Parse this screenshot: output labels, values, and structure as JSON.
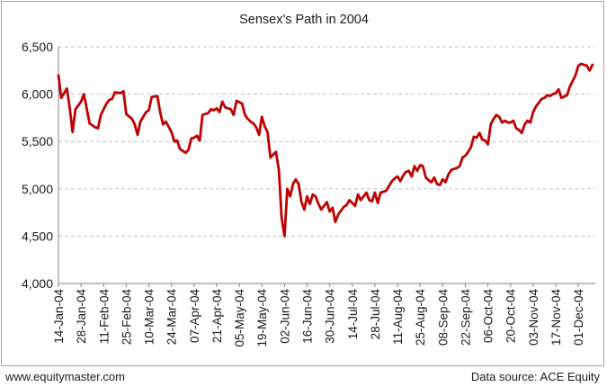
{
  "footer": {
    "website": "www.equitymaster.com",
    "source": "Data source: ACE Equity"
  },
  "colors": {
    "line": "#c00000",
    "grid": "#bfbfbf",
    "axis": "#808080",
    "text": "#1a1a1a"
  },
  "chart_data": {
    "type": "line",
    "title": "Sensex's Path in 2004",
    "xlabel": "",
    "ylabel": "",
    "ylim": [
      4000,
      6500
    ],
    "yticks": [
      "4,000",
      "4,500",
      "5,000",
      "5,500",
      "6,000",
      "6,500"
    ],
    "ytick_values": [
      4000,
      4500,
      5000,
      5500,
      6000,
      6500
    ],
    "grid": "horizontal-dashed",
    "x_tick_labels": [
      "14-Jan-04",
      "28-Jan-04",
      "11-Feb-04",
      "25-Feb-04",
      "10-Mar-04",
      "24-Mar-04",
      "07-Apr-04",
      "21-Apr-04",
      "05-May-04",
      "19-May-04",
      "02-Jun-04",
      "16-Jun-04",
      "30-Jun-04",
      "14-Jul-04",
      "28-Jul-04",
      "11-Aug-04",
      "25-Aug-04",
      "08-Sep-04",
      "22-Sep-04",
      "06-Oct-04",
      "20-Oct-04",
      "03-Nov-04",
      "17-Nov-04",
      "01-Dec-04"
    ],
    "series": [
      {
        "values": [
          [
            0,
            6200
          ],
          [
            1,
            5960
          ],
          [
            3,
            6060
          ],
          [
            4,
            5850
          ],
          [
            5,
            5600
          ],
          [
            6,
            5840
          ],
          [
            8,
            5920
          ],
          [
            9,
            6000
          ],
          [
            10,
            5850
          ],
          [
            11,
            5690
          ],
          [
            13,
            5650
          ],
          [
            14,
            5640
          ],
          [
            15,
            5780
          ],
          [
            17,
            5900
          ],
          [
            18,
            5940
          ],
          [
            19,
            5950
          ],
          [
            20,
            6020
          ],
          [
            22,
            6010
          ],
          [
            23,
            6030
          ],
          [
            24,
            5790
          ],
          [
            26,
            5740
          ],
          [
            27,
            5680
          ],
          [
            28,
            5570
          ],
          [
            29,
            5710
          ],
          [
            31,
            5810
          ],
          [
            32,
            5830
          ],
          [
            33,
            5970
          ],
          [
            35,
            5980
          ],
          [
            36,
            5810
          ],
          [
            37,
            5680
          ],
          [
            38,
            5710
          ],
          [
            40,
            5600
          ],
          [
            41,
            5500
          ],
          [
            42,
            5510
          ],
          [
            43,
            5420
          ],
          [
            45,
            5380
          ],
          [
            46,
            5410
          ],
          [
            47,
            5530
          ],
          [
            48,
            5540
          ],
          [
            49,
            5560
          ],
          [
            50,
            5510
          ],
          [
            51,
            5780
          ],
          [
            53,
            5800
          ],
          [
            54,
            5840
          ],
          [
            55,
            5830
          ],
          [
            56,
            5850
          ],
          [
            57,
            5810
          ],
          [
            58,
            5920
          ],
          [
            59,
            5860
          ],
          [
            61,
            5840
          ],
          [
            62,
            5780
          ],
          [
            63,
            5930
          ],
          [
            65,
            5900
          ],
          [
            66,
            5780
          ],
          [
            67,
            5740
          ],
          [
            68,
            5710
          ],
          [
            69,
            5690
          ],
          [
            70,
            5650
          ],
          [
            71,
            5570
          ],
          [
            72,
            5760
          ],
          [
            73,
            5660
          ],
          [
            74,
            5600
          ],
          [
            75,
            5330
          ],
          [
            76,
            5360
          ],
          [
            77,
            5390
          ],
          [
            78,
            5200
          ],
          [
            79,
            4690
          ],
          [
            80,
            4500
          ],
          [
            81,
            5000
          ],
          [
            82,
            4920
          ],
          [
            83,
            5050
          ],
          [
            84,
            5100
          ],
          [
            85,
            5050
          ],
          [
            86,
            4860
          ],
          [
            87,
            4780
          ],
          [
            88,
            4920
          ],
          [
            89,
            4840
          ],
          [
            90,
            4940
          ],
          [
            91,
            4920
          ],
          [
            92,
            4840
          ],
          [
            93,
            4780
          ],
          [
            94,
            4820
          ],
          [
            95,
            4860
          ],
          [
            96,
            4760
          ],
          [
            97,
            4800
          ],
          [
            98,
            4650
          ],
          [
            99,
            4730
          ],
          [
            100,
            4770
          ],
          [
            101,
            4810
          ],
          [
            102,
            4830
          ],
          [
            103,
            4880
          ],
          [
            104,
            4850
          ],
          [
            105,
            4820
          ],
          [
            106,
            4940
          ],
          [
            107,
            4880
          ],
          [
            108,
            4920
          ],
          [
            109,
            4960
          ],
          [
            110,
            4880
          ],
          [
            111,
            4870
          ],
          [
            112,
            4960
          ],
          [
            113,
            4850
          ],
          [
            114,
            4960
          ],
          [
            115,
            4970
          ],
          [
            116,
            4980
          ],
          [
            118,
            5080
          ],
          [
            119,
            5110
          ],
          [
            120,
            5130
          ],
          [
            121,
            5080
          ],
          [
            122,
            5140
          ],
          [
            123,
            5180
          ],
          [
            124,
            5190
          ],
          [
            125,
            5130
          ],
          [
            126,
            5240
          ],
          [
            127,
            5190
          ],
          [
            128,
            5250
          ],
          [
            129,
            5240
          ],
          [
            130,
            5120
          ],
          [
            131,
            5090
          ],
          [
            132,
            5070
          ],
          [
            133,
            5120
          ],
          [
            134,
            5050
          ],
          [
            135,
            5040
          ],
          [
            136,
            5100
          ],
          [
            137,
            5070
          ],
          [
            138,
            5150
          ],
          [
            139,
            5200
          ],
          [
            140,
            5210
          ],
          [
            141,
            5220
          ],
          [
            142,
            5240
          ],
          [
            143,
            5330
          ],
          [
            144,
            5350
          ],
          [
            145,
            5390
          ],
          [
            146,
            5440
          ],
          [
            147,
            5550
          ],
          [
            148,
            5540
          ],
          [
            149,
            5590
          ],
          [
            150,
            5520
          ],
          [
            151,
            5510
          ],
          [
            152,
            5470
          ],
          [
            153,
            5680
          ],
          [
            154,
            5740
          ],
          [
            155,
            5780
          ],
          [
            156,
            5760
          ],
          [
            157,
            5700
          ],
          [
            158,
            5720
          ],
          [
            159,
            5700
          ],
          [
            160,
            5700
          ],
          [
            161,
            5720
          ],
          [
            162,
            5640
          ],
          [
            163,
            5620
          ],
          [
            164,
            5590
          ],
          [
            165,
            5680
          ],
          [
            166,
            5720
          ],
          [
            167,
            5700
          ],
          [
            168,
            5810
          ],
          [
            169,
            5870
          ],
          [
            170,
            5910
          ],
          [
            171,
            5950
          ],
          [
            172,
            5960
          ],
          [
            173,
            5990
          ],
          [
            174,
            5980
          ],
          [
            175,
            6000
          ],
          [
            176,
            6010
          ],
          [
            177,
            6050
          ],
          [
            178,
            5960
          ],
          [
            180,
            5990
          ],
          [
            181,
            6080
          ],
          [
            182,
            6140
          ],
          [
            183,
            6200
          ],
          [
            184,
            6300
          ],
          [
            185,
            6320
          ],
          [
            186,
            6310
          ],
          [
            187,
            6300
          ],
          [
            188,
            6250
          ],
          [
            189,
            6310
          ]
        ]
      }
    ]
  }
}
